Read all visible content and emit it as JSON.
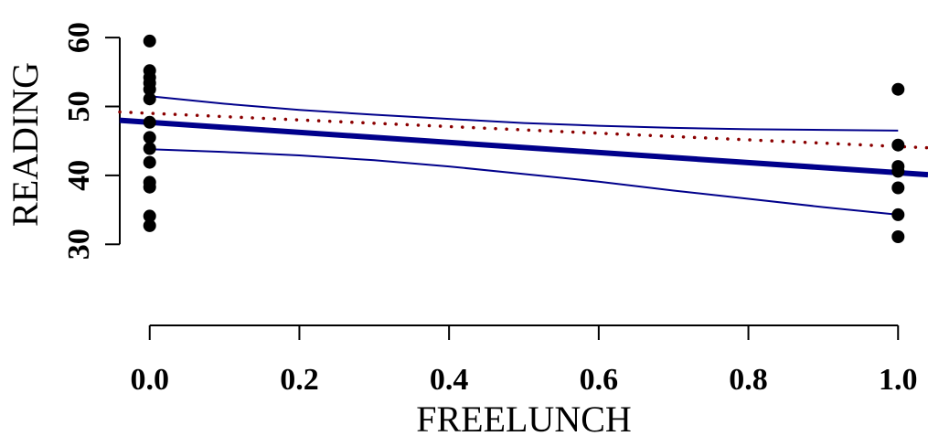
{
  "chart_data": {
    "type": "scatter",
    "xlabel": "FREELUNCH",
    "ylabel": "READING",
    "xlim": [
      -0.04,
      1.04
    ],
    "ylim": [
      24.6,
      62.8
    ],
    "x_ticks": [
      {
        "value": 0.0,
        "label": "0.0"
      },
      {
        "value": 0.2,
        "label": "0.2"
      },
      {
        "value": 0.4,
        "label": "0.4"
      },
      {
        "value": 0.6,
        "label": "0.6"
      },
      {
        "value": 0.8,
        "label": "0.8"
      },
      {
        "value": 1.0,
        "label": "1.0"
      }
    ],
    "y_ticks": [
      {
        "value": 30,
        "label": "30"
      },
      {
        "value": 40,
        "label": "40"
      },
      {
        "value": 50,
        "label": "50"
      },
      {
        "value": 60,
        "label": "60"
      }
    ],
    "grid": false,
    "points": [
      {
        "x": 0,
        "y": 59.5
      },
      {
        "x": 0,
        "y": 55.2
      },
      {
        "x": 0,
        "y": 54.2
      },
      {
        "x": 0,
        "y": 53.4
      },
      {
        "x": 0,
        "y": 52.5
      },
      {
        "x": 0,
        "y": 51.1
      },
      {
        "x": 0,
        "y": 47.7
      },
      {
        "x": 0,
        "y": 45.5
      },
      {
        "x": 0,
        "y": 43.9
      },
      {
        "x": 0,
        "y": 41.9
      },
      {
        "x": 0,
        "y": 39.0
      },
      {
        "x": 0,
        "y": 38.3
      },
      {
        "x": 0,
        "y": 34.1
      },
      {
        "x": 0,
        "y": 32.7
      },
      {
        "x": 1,
        "y": 52.5
      },
      {
        "x": 1,
        "y": 44.4
      },
      {
        "x": 1,
        "y": 41.3
      },
      {
        "x": 1,
        "y": 40.6
      },
      {
        "x": 1,
        "y": 38.2
      },
      {
        "x": 1,
        "y": 34.3
      },
      {
        "x": 1,
        "y": 31.1
      }
    ],
    "fit_line": {
      "x": [
        -0.04,
        1.04
      ],
      "y": [
        48.0,
        40.1
      ],
      "color": "#00008b"
    },
    "confidence_upper": {
      "x": [
        0,
        0.1,
        0.2,
        0.3,
        0.4,
        0.5,
        0.6,
        0.7,
        0.8,
        0.9,
        1.0
      ],
      "y": [
        51.5,
        50.4,
        49.5,
        48.8,
        48.2,
        47.6,
        47.2,
        46.9,
        46.7,
        46.6,
        46.5
      ],
      "color": "#00008b"
    },
    "confidence_lower": {
      "x": [
        0,
        0.1,
        0.2,
        0.3,
        0.4,
        0.5,
        0.6,
        0.7,
        0.8,
        0.9,
        1.0
      ],
      "y": [
        43.8,
        43.4,
        42.9,
        42.2,
        41.3,
        40.2,
        39.1,
        37.8,
        36.6,
        35.4,
        34.3
      ],
      "color": "#00008b"
    },
    "dotted_line": {
      "x": [
        -0.04,
        1.04
      ],
      "y": [
        49.2,
        44.0
      ],
      "color": "#8b0000"
    }
  }
}
